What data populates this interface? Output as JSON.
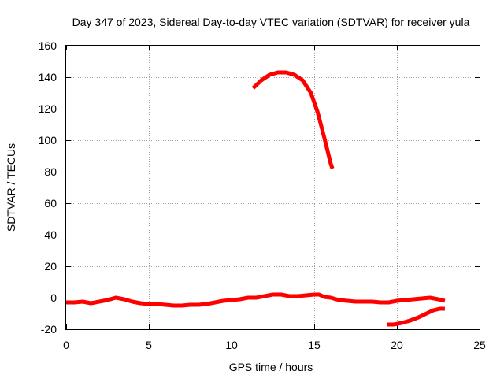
{
  "chart_data": {
    "type": "line",
    "title": "Day 347 of 2023, Sidereal Day-to-day VTEC variation (SDTVAR) for receiver yula",
    "xlabel": "GPS time / hours",
    "ylabel": "SDTVAR / TECUs",
    "xlim": [
      0,
      25
    ],
    "ylim": [
      -20,
      160
    ],
    "xticks": [
      0,
      5,
      10,
      15,
      20,
      25
    ],
    "yticks": [
      -20,
      0,
      20,
      40,
      60,
      80,
      100,
      120,
      140,
      160
    ],
    "grid": true,
    "color": "#ff0000",
    "series": [
      {
        "name": "baseline",
        "points": [
          [
            0.0,
            -3
          ],
          [
            0.5,
            -3
          ],
          [
            1.0,
            -2.5
          ],
          [
            1.5,
            -3.5
          ],
          [
            2.0,
            -2.5
          ],
          [
            2.5,
            -1.5
          ],
          [
            3.0,
            0
          ],
          [
            3.5,
            -1
          ],
          [
            4.0,
            -2.5
          ],
          [
            4.5,
            -3.5
          ],
          [
            5.0,
            -4
          ],
          [
            5.5,
            -4
          ],
          [
            6.0,
            -4.5
          ],
          [
            6.5,
            -5
          ],
          [
            7.0,
            -5
          ],
          [
            7.5,
            -4.5
          ],
          [
            8.0,
            -4.5
          ],
          [
            8.5,
            -4
          ],
          [
            9.0,
            -3
          ],
          [
            9.5,
            -2
          ],
          [
            10.0,
            -1.5
          ],
          [
            10.5,
            -1
          ],
          [
            11.0,
            0
          ],
          [
            11.5,
            0
          ],
          [
            12.0,
            1
          ],
          [
            12.5,
            2
          ],
          [
            13.0,
            2
          ],
          [
            13.5,
            1
          ],
          [
            14.0,
            1
          ],
          [
            14.5,
            1.5
          ],
          [
            15.0,
            2
          ],
          [
            15.3,
            2
          ],
          [
            15.6,
            0.5
          ],
          [
            16.0,
            0
          ],
          [
            16.5,
            -1.5
          ],
          [
            17.0,
            -2
          ],
          [
            17.5,
            -2.5
          ],
          [
            18.0,
            -2.5
          ],
          [
            18.5,
            -2.5
          ],
          [
            19.0,
            -3
          ],
          [
            19.5,
            -3
          ],
          [
            20.0,
            -2
          ],
          [
            20.5,
            -1.5
          ],
          [
            21.0,
            -1
          ],
          [
            21.5,
            -0.5
          ],
          [
            22.0,
            0
          ],
          [
            22.5,
            -1
          ],
          [
            22.9,
            -2
          ]
        ]
      },
      {
        "name": "high-arc",
        "points": [
          [
            11.3,
            133
          ],
          [
            11.8,
            138
          ],
          [
            12.3,
            141.5
          ],
          [
            12.8,
            143
          ],
          [
            13.3,
            143
          ],
          [
            13.8,
            141.5
          ],
          [
            14.3,
            138
          ],
          [
            14.8,
            130
          ],
          [
            15.2,
            118
          ],
          [
            15.6,
            102
          ],
          [
            16.0,
            85
          ],
          [
            16.1,
            82
          ]
        ]
      },
      {
        "name": "low-tail",
        "points": [
          [
            19.4,
            -17
          ],
          [
            19.8,
            -17
          ],
          [
            20.3,
            -16
          ],
          [
            20.8,
            -14.5
          ],
          [
            21.3,
            -12.5
          ],
          [
            21.8,
            -10
          ],
          [
            22.2,
            -8
          ],
          [
            22.6,
            -7
          ],
          [
            22.9,
            -7
          ]
        ]
      }
    ]
  }
}
